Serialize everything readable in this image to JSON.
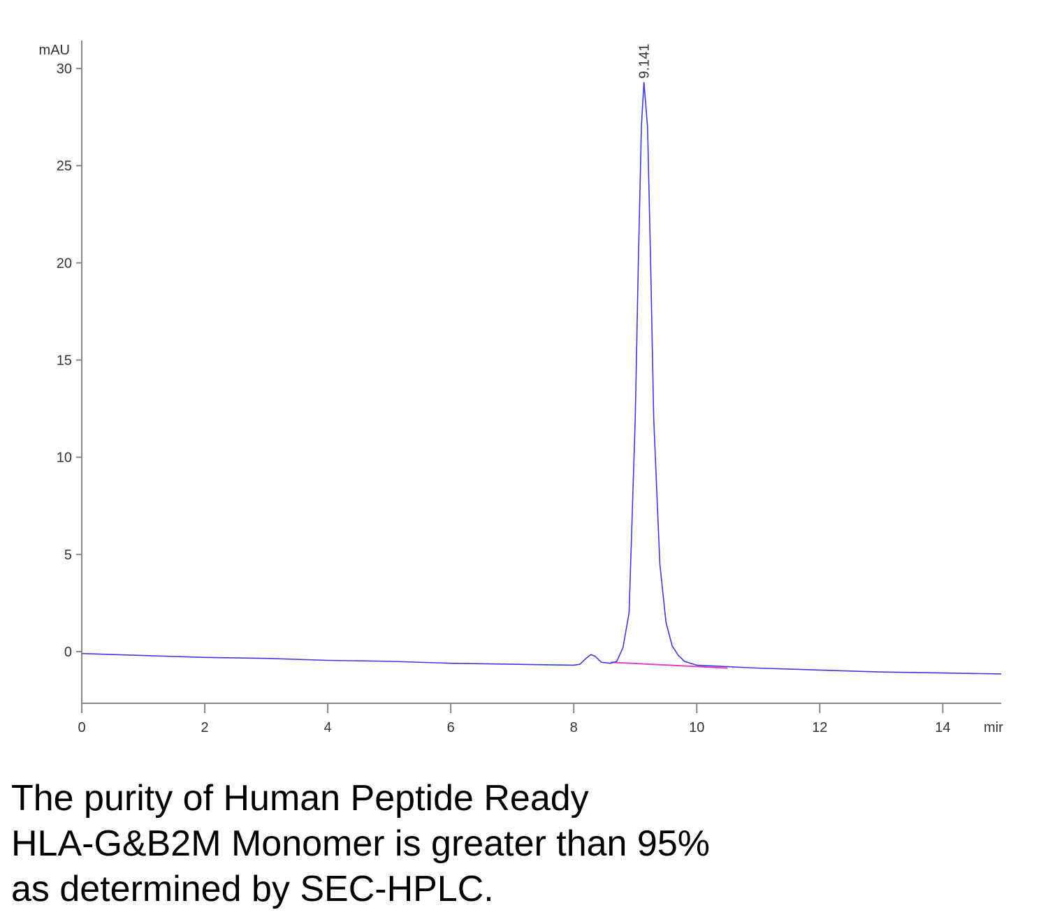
{
  "chart_data": {
    "type": "line",
    "ylabel": "mAU",
    "xlabel": "mir",
    "x": [
      0,
      1,
      2,
      3,
      4,
      5,
      6,
      7,
      8.0,
      8.1,
      8.2,
      8.28,
      8.35,
      8.45,
      8.6,
      8.7,
      8.8,
      8.9,
      9.0,
      9.05,
      9.1,
      9.141,
      9.2,
      9.25,
      9.3,
      9.4,
      9.5,
      9.6,
      9.7,
      9.8,
      10,
      11,
      12,
      13,
      14,
      14.95
    ],
    "values": [
      -0.1,
      -0.2,
      -0.3,
      -0.35,
      -0.45,
      -0.5,
      -0.6,
      -0.65,
      -0.7,
      -0.65,
      -0.35,
      -0.15,
      -0.25,
      -0.55,
      -0.6,
      -0.5,
      0.2,
      2.0,
      12,
      20,
      27,
      29.3,
      27,
      20,
      12,
      4.5,
      1.5,
      0.3,
      -0.2,
      -0.5,
      -0.7,
      -0.85,
      -0.95,
      -1.05,
      -1.1,
      -1.15
    ],
    "color": "#3a3adf",
    "baseline": {
      "x": [
        8.6,
        10.5
      ],
      "values": [
        -0.55,
        -0.85
      ],
      "color": "#e040c8"
    },
    "peak_label": "9.141",
    "xlim": [
      0,
      14.95
    ],
    "ylim": [
      -2.66,
      31.44
    ],
    "xticks": [
      0,
      2,
      4,
      6,
      8,
      10,
      12,
      14
    ],
    "yticks": [
      0,
      5,
      10,
      15,
      20,
      25,
      30
    ],
    "caption": [
      "The purity of Human Peptide Ready",
      "HLA-G&B2M Monomer is greater than 95%",
      "as determined by SEC-HPLC."
    ]
  }
}
